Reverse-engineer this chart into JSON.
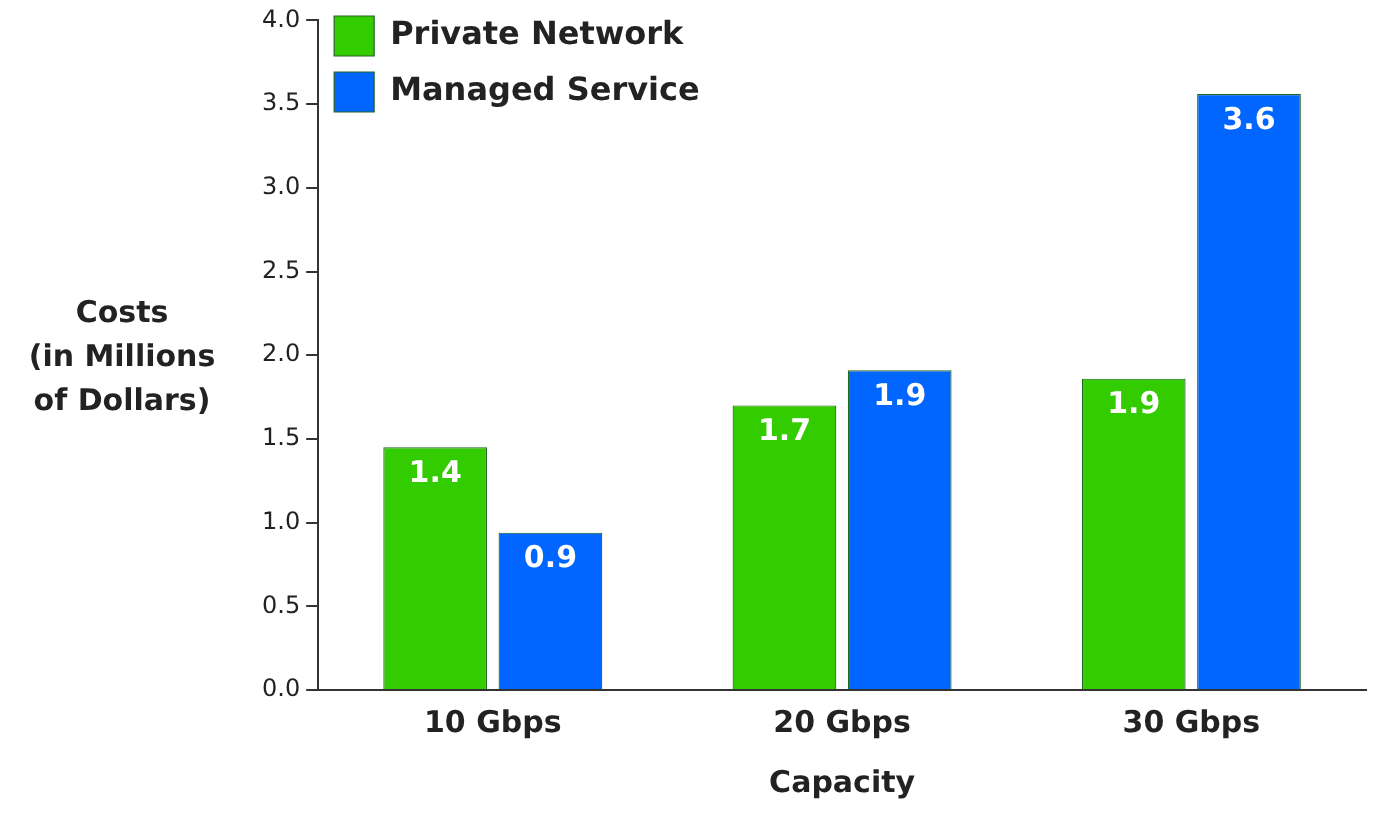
{
  "chart_data": {
    "type": "bar",
    "xlabel": "Capacity",
    "ylabel": "Costs\n(in Millions\nof Dollars)",
    "categories": [
      "10 Gbps",
      "20 Gbps",
      "30 Gbps"
    ],
    "series": [
      {
        "name": "Private Network",
        "color": "#33cc00",
        "values": [
          1.45,
          1.7,
          1.86
        ],
        "value_labels": [
          "1.4",
          "1.7",
          "1.9"
        ]
      },
      {
        "name": "Managed Service",
        "color": "#0066ff",
        "values": [
          0.94,
          1.91,
          3.56
        ],
        "value_labels": [
          "0.9",
          "1.9",
          "3.6"
        ]
      }
    ],
    "ylim": [
      0,
      4
    ],
    "yticks": [
      {
        "value": 0,
        "label": "0.0"
      },
      {
        "value": 0.5,
        "label": "0.5"
      },
      {
        "value": 1,
        "label": "1.0"
      },
      {
        "value": 1.5,
        "label": "1.5"
      },
      {
        "value": 2,
        "label": "2.0"
      },
      {
        "value": 2.5,
        "label": "2.5"
      },
      {
        "value": 3,
        "label": "3.0"
      },
      {
        "value": 3.5,
        "label": "3.5"
      },
      {
        "value": 4,
        "label": "4.0"
      }
    ],
    "grid": false,
    "legend": "top left"
  }
}
